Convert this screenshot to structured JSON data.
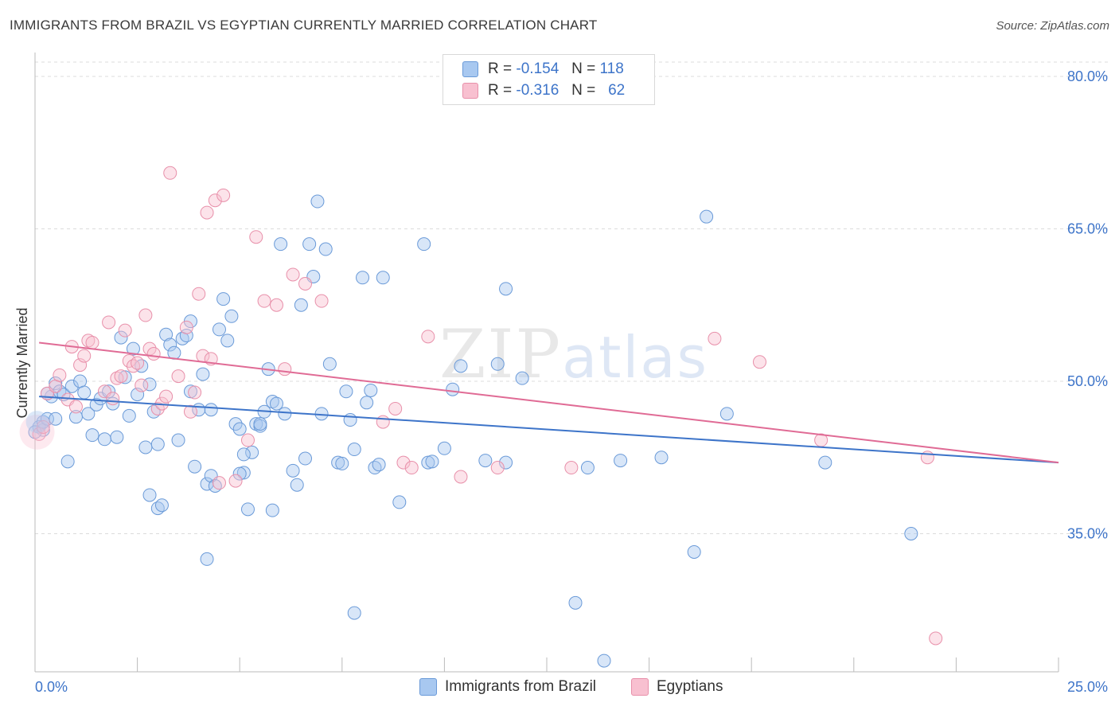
{
  "title": "IMMIGRANTS FROM BRAZIL VS EGYPTIAN CURRENTLY MARRIED CORRELATION CHART",
  "source": "Source: ZipAtlas.com",
  "watermark": {
    "zip": "ZIP",
    "atlas": "atlas"
  },
  "legend": {
    "rows": [
      {
        "r_label": "R =",
        "r_value": "-0.154",
        "n_label": "N =",
        "n_value": "118",
        "color": "#a8c8f0",
        "border": "#6a9ad8"
      },
      {
        "r_label": "R =",
        "r_value": "-0.316",
        "n_label": "N =",
        "n_value": "62",
        "color": "#f8c0d0",
        "border": "#e890aa"
      }
    ]
  },
  "bottom_legend": [
    {
      "label": "Immigrants from Brazil",
      "color": "#a8c8f0",
      "border": "#6a9ad8"
    },
    {
      "label": "Egyptians",
      "color": "#f8c0d0",
      "border": "#e890aa"
    }
  ],
  "chart_data": {
    "type": "scatter",
    "xlabel": "",
    "ylabel": "Currently Married",
    "xlim": [
      0,
      25
    ],
    "ylim": [
      20,
      83
    ],
    "x_tick_labels": [
      "0.0%",
      "25.0%"
    ],
    "y_ticks": [
      35,
      50,
      65,
      80
    ],
    "y_tick_labels": [
      "35.0%",
      "50.0%",
      "65.0%",
      "80.0%"
    ],
    "grid": true,
    "legend_position": "top-center",
    "series": [
      {
        "name": "Immigrants from Brazil",
        "color": "#6a9ad8",
        "fill": "rgba(168,200,240,0.45)",
        "trend": {
          "x0": 0.1,
          "y0": 48.5,
          "x1": 25.0,
          "y1": 42.0,
          "color": "#3d74c9"
        },
        "points": [
          [
            0.1,
            45.5
          ],
          [
            0.2,
            45.2
          ],
          [
            0.2,
            46.0
          ],
          [
            0.3,
            46.3
          ],
          [
            0.4,
            48.5
          ],
          [
            0.5,
            49.8
          ],
          [
            0.6,
            49.0
          ],
          [
            0.7,
            48.7
          ],
          [
            0.8,
            42.1
          ],
          [
            0.9,
            49.5
          ],
          [
            1.0,
            46.5
          ],
          [
            1.1,
            50.0
          ],
          [
            1.2,
            48.9
          ],
          [
            1.3,
            46.8
          ],
          [
            1.4,
            44.7
          ],
          [
            1.5,
            47.7
          ],
          [
            1.6,
            48.3
          ],
          [
            1.7,
            44.3
          ],
          [
            1.8,
            49.0
          ],
          [
            1.9,
            47.8
          ],
          [
            2.0,
            44.5
          ],
          [
            2.1,
            54.3
          ],
          [
            2.2,
            50.4
          ],
          [
            2.3,
            46.6
          ],
          [
            2.4,
            53.2
          ],
          [
            2.5,
            48.7
          ],
          [
            2.6,
            51.5
          ],
          [
            2.7,
            43.5
          ],
          [
            2.8,
            49.7
          ],
          [
            2.8,
            38.8
          ],
          [
            2.9,
            47.0
          ],
          [
            3.0,
            43.8
          ],
          [
            3.0,
            37.5
          ],
          [
            3.1,
            37.8
          ],
          [
            3.2,
            54.6
          ],
          [
            3.3,
            53.6
          ],
          [
            3.4,
            52.8
          ],
          [
            3.5,
            44.2
          ],
          [
            3.6,
            54.2
          ],
          [
            3.7,
            54.5
          ],
          [
            3.8,
            49.0
          ],
          [
            3.8,
            55.9
          ],
          [
            3.9,
            41.6
          ],
          [
            4.0,
            47.2
          ],
          [
            4.1,
            50.7
          ],
          [
            4.2,
            39.9
          ],
          [
            4.3,
            40.7
          ],
          [
            4.3,
            47.2
          ],
          [
            4.4,
            39.7
          ],
          [
            4.5,
            55.1
          ],
          [
            4.6,
            58.1
          ],
          [
            4.7,
            54.0
          ],
          [
            4.8,
            56.4
          ],
          [
            4.9,
            45.8
          ],
          [
            5.0,
            45.3
          ],
          [
            5.1,
            41.0
          ],
          [
            5.2,
            37.4
          ],
          [
            5.3,
            43.0
          ],
          [
            5.4,
            45.8
          ],
          [
            5.5,
            45.6
          ],
          [
            5.5,
            45.8
          ],
          [
            5.6,
            47.0
          ],
          [
            5.7,
            51.2
          ],
          [
            5.8,
            48.0
          ],
          [
            5.8,
            37.3
          ],
          [
            5.9,
            47.8
          ],
          [
            6.0,
            63.5
          ],
          [
            6.1,
            46.8
          ],
          [
            6.3,
            41.2
          ],
          [
            6.4,
            39.8
          ],
          [
            6.5,
            57.5
          ],
          [
            6.6,
            42.4
          ],
          [
            6.7,
            63.5
          ],
          [
            6.8,
            60.3
          ],
          [
            6.9,
            67.7
          ],
          [
            7.0,
            46.8
          ],
          [
            7.1,
            63.0
          ],
          [
            7.2,
            51.7
          ],
          [
            7.4,
            42.0
          ],
          [
            7.5,
            41.9
          ],
          [
            7.6,
            49.0
          ],
          [
            7.7,
            46.2
          ],
          [
            7.8,
            43.3
          ],
          [
            7.8,
            27.2
          ],
          [
            8.0,
            60.2
          ],
          [
            8.1,
            47.9
          ],
          [
            8.2,
            49.1
          ],
          [
            8.3,
            41.5
          ],
          [
            8.4,
            41.8
          ],
          [
            8.5,
            60.2
          ],
          [
            8.9,
            38.1
          ],
          [
            9.5,
            63.5
          ],
          [
            9.6,
            42.0
          ],
          [
            9.7,
            42.1
          ],
          [
            10.0,
            43.4
          ],
          [
            10.2,
            49.2
          ],
          [
            10.4,
            51.5
          ],
          [
            11.0,
            42.2
          ],
          [
            11.3,
            51.7
          ],
          [
            11.5,
            59.1
          ],
          [
            11.5,
            42.0
          ],
          [
            11.9,
            50.3
          ],
          [
            13.2,
            28.2
          ],
          [
            13.5,
            41.5
          ],
          [
            13.9,
            22.5
          ],
          [
            14.3,
            42.2
          ],
          [
            15.3,
            42.5
          ],
          [
            16.1,
            33.2
          ],
          [
            16.4,
            66.2
          ],
          [
            16.9,
            46.8
          ],
          [
            19.3,
            42.0
          ],
          [
            21.4,
            35.0
          ],
          [
            4.2,
            32.5
          ],
          [
            5.0,
            40.9
          ],
          [
            5.1,
            42.8
          ],
          [
            0.0,
            45.0
          ],
          [
            0.5,
            46.3
          ],
          [
            0.3,
            48.8
          ]
        ]
      },
      {
        "name": "Egyptians",
        "color": "#e890aa",
        "fill": "rgba(248,192,208,0.45)",
        "trend": {
          "x0": 0.1,
          "y0": 53.8,
          "x1": 25.0,
          "y1": 42.0,
          "color": "#e06b95"
        },
        "points": [
          [
            0.1,
            44.8
          ],
          [
            0.2,
            45.5
          ],
          [
            0.3,
            48.8
          ],
          [
            0.5,
            49.5
          ],
          [
            0.6,
            50.6
          ],
          [
            0.8,
            48.2
          ],
          [
            0.9,
            53.4
          ],
          [
            1.0,
            47.5
          ],
          [
            1.1,
            51.6
          ],
          [
            1.2,
            52.5
          ],
          [
            1.3,
            54.0
          ],
          [
            1.4,
            53.8
          ],
          [
            1.7,
            49.0
          ],
          [
            1.8,
            55.8
          ],
          [
            1.9,
            48.3
          ],
          [
            2.0,
            50.3
          ],
          [
            2.1,
            50.5
          ],
          [
            2.2,
            55.0
          ],
          [
            2.3,
            52.0
          ],
          [
            2.4,
            51.5
          ],
          [
            2.5,
            51.8
          ],
          [
            2.6,
            49.6
          ],
          [
            2.7,
            56.5
          ],
          [
            2.8,
            53.2
          ],
          [
            2.9,
            52.7
          ],
          [
            3.0,
            47.3
          ],
          [
            3.1,
            47.8
          ],
          [
            3.2,
            48.5
          ],
          [
            3.3,
            70.5
          ],
          [
            3.5,
            50.5
          ],
          [
            3.7,
            55.3
          ],
          [
            3.8,
            47.0
          ],
          [
            3.9,
            48.9
          ],
          [
            4.0,
            58.6
          ],
          [
            4.1,
            52.5
          ],
          [
            4.2,
            66.6
          ],
          [
            4.3,
            52.2
          ],
          [
            4.4,
            67.8
          ],
          [
            4.5,
            40.0
          ],
          [
            4.6,
            68.3
          ],
          [
            4.9,
            40.2
          ],
          [
            5.2,
            44.2
          ],
          [
            5.4,
            64.2
          ],
          [
            5.6,
            57.9
          ],
          [
            5.9,
            57.5
          ],
          [
            6.1,
            51.2
          ],
          [
            6.3,
            60.5
          ],
          [
            6.6,
            59.6
          ],
          [
            7.0,
            57.9
          ],
          [
            8.5,
            46.0
          ],
          [
            8.8,
            47.3
          ],
          [
            9.0,
            42.0
          ],
          [
            9.2,
            41.5
          ],
          [
            9.6,
            54.4
          ],
          [
            10.4,
            40.6
          ],
          [
            11.3,
            41.5
          ],
          [
            13.1,
            41.5
          ],
          [
            16.6,
            54.2
          ],
          [
            17.7,
            51.9
          ],
          [
            19.2,
            44.2
          ],
          [
            21.8,
            42.5
          ],
          [
            22.0,
            24.7
          ]
        ]
      }
    ]
  }
}
